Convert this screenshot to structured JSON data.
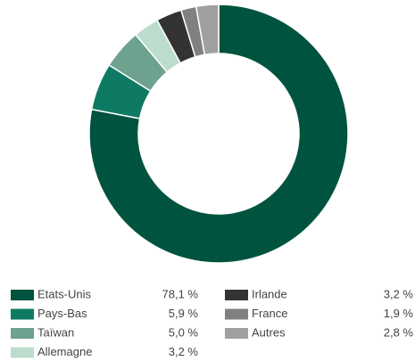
{
  "chart_data": {
    "type": "donut",
    "categories": [
      "Etats-Unis",
      "Pays-Bas",
      "Taïwan",
      "Allemagne",
      "Irlande",
      "France",
      "Autres"
    ],
    "values": [
      78.1,
      5.9,
      5.0,
      3.2,
      3.2,
      1.9,
      2.8
    ],
    "value_labels": [
      "78,1 %",
      "5,9 %",
      "5,0 %",
      "3,2 %",
      "3,2 %",
      "1,9 %",
      "2,8 %"
    ],
    "colors": [
      "#00533e",
      "#0e7a63",
      "#6ca28e",
      "#bcdccd",
      "#333333",
      "#808080",
      "#a0a0a0"
    ],
    "legend": "bottom"
  }
}
